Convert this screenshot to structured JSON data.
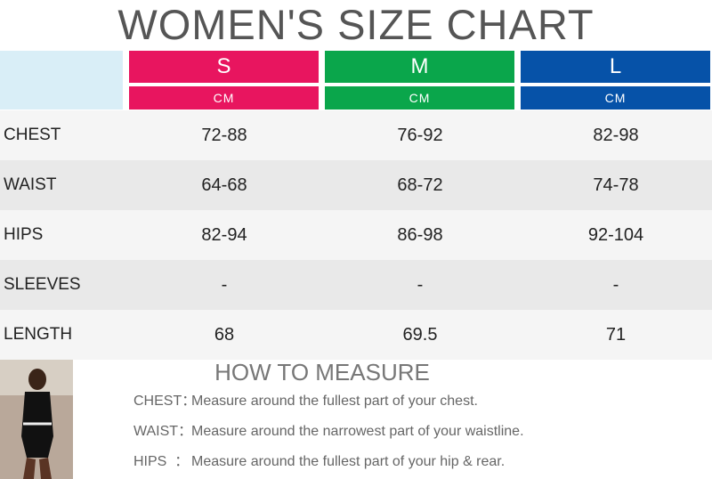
{
  "header": {
    "title": "WOMEN'S SIZE CHART"
  },
  "table": {
    "sizes": [
      {
        "name": "S",
        "unit": "CM"
      },
      {
        "name": "M",
        "unit": "CM"
      },
      {
        "name": "L",
        "unit": "CM"
      }
    ],
    "rows": [
      [
        "CHEST",
        "72-88",
        "76-92",
        "82-98"
      ],
      [
        "WAIST",
        "64-68",
        "68-72",
        "74-78"
      ],
      [
        "HIPS",
        "82-94",
        "86-98",
        "92-104"
      ],
      [
        "SLEEVES",
        "-",
        "-",
        "-"
      ],
      [
        "LENGTH",
        "68",
        "69.5",
        "71"
      ]
    ]
  },
  "measure": {
    "title": "HOW TO MEASURE",
    "items": [
      {
        "label": "CHEST：",
        "text": "Measure around the fullest part of your chest."
      },
      {
        "label": "WAIST：",
        "text": "Measure around the narrowest part of your waistline."
      },
      {
        "label": "HIPS  ：",
        "text": "Measure around the fullest part of your hip & rear."
      }
    ]
  }
}
